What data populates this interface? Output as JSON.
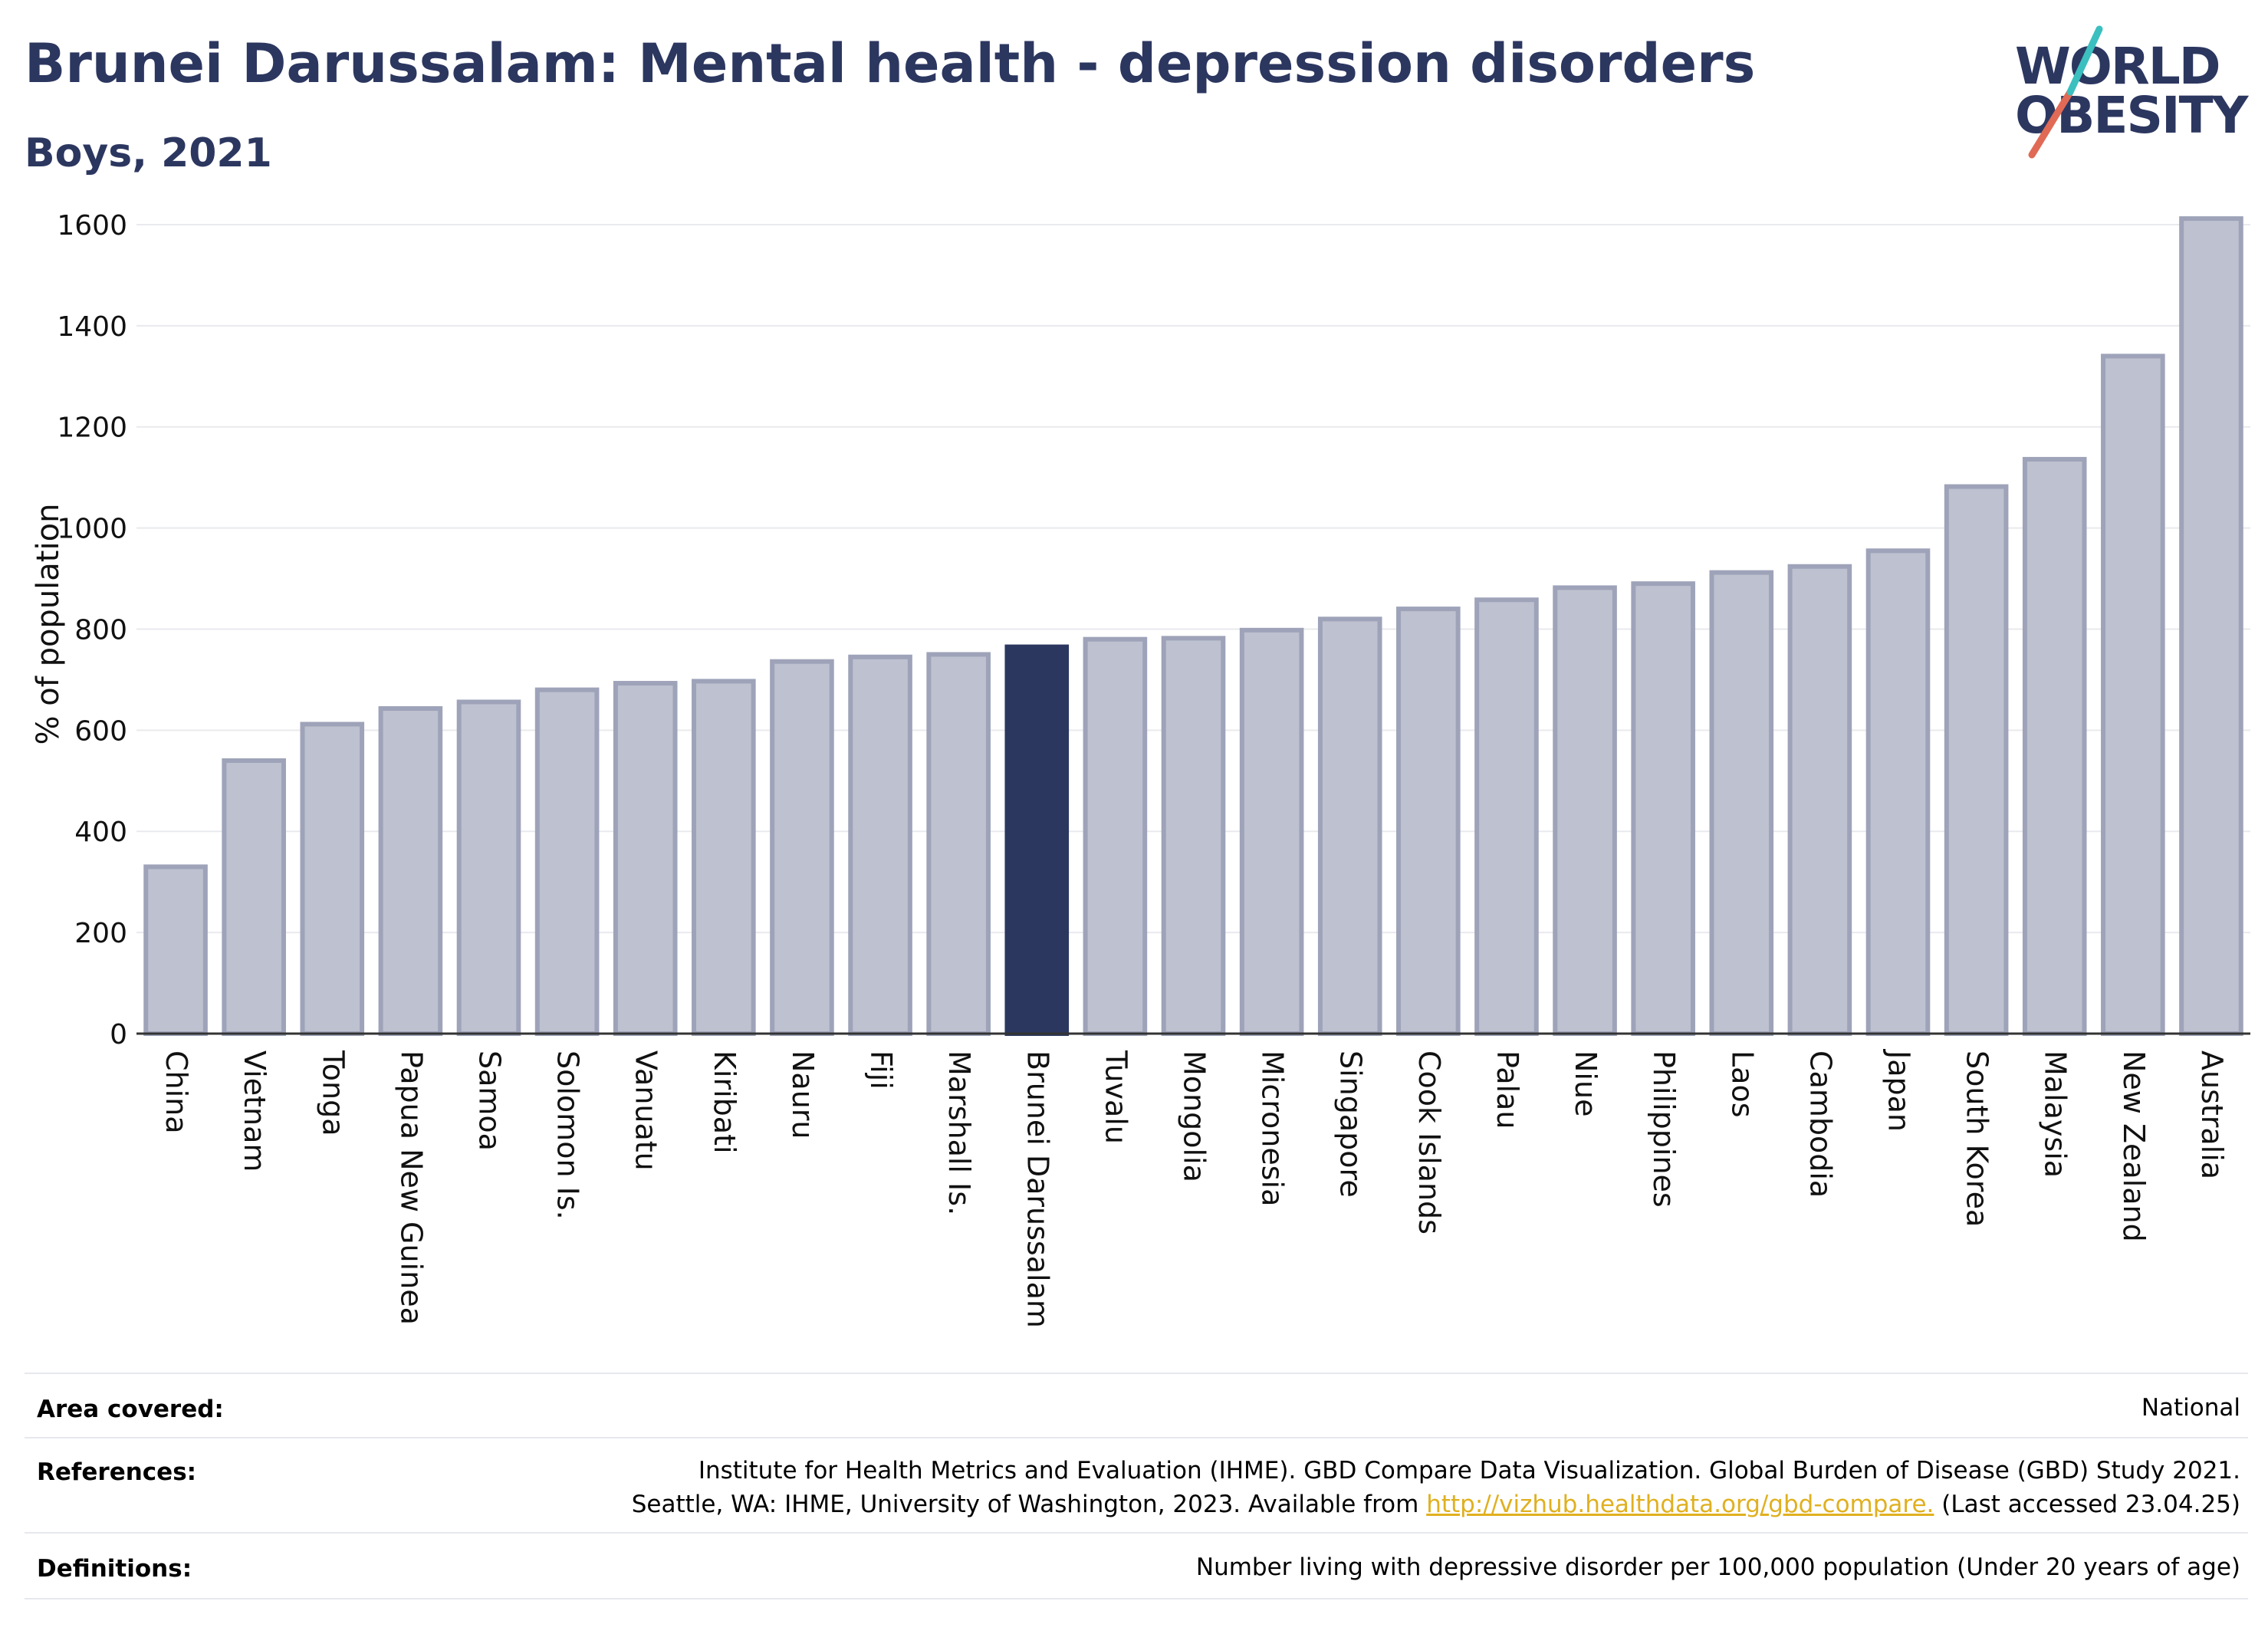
{
  "header": {
    "title": "Brunei Darussalam: Mental health - depression disorders",
    "subtitle": "Boys, 2021"
  },
  "logo": {
    "line1": "WORLD",
    "line2": "OBESITY",
    "colors": [
      "#2c3760",
      "#e06a55",
      "#3cbfbf"
    ]
  },
  "colors": {
    "bar": "#bec1cf",
    "bar_border": "#9ea3b9",
    "highlight": "#2c3760",
    "grid": "#e9eaee",
    "axis": "#333333"
  },
  "chart_data": {
    "type": "bar",
    "ylabel": "% of population",
    "ylim": [
      0,
      1650
    ],
    "yticks": [
      0,
      200,
      400,
      600,
      800,
      1000,
      1200,
      1400,
      1600
    ],
    "grid": true,
    "highlight": "Brunei Darussalam",
    "categories": [
      "China",
      "Vietnam",
      "Tonga",
      "Papua New Guinea",
      "Samoa",
      "Solomon Is.",
      "Vanuatu",
      "Kiribati",
      "Nauru",
      "Fiji",
      "Marshall Is.",
      "Brunei Darussalam",
      "Tuvalu",
      "Mongolia",
      "Micronesia",
      "Singapore",
      "Cook Islands",
      "Palau",
      "Niue",
      "Philippines",
      "Laos",
      "Cambodia",
      "Japan",
      "South Korea",
      "Malaysia",
      "New Zealand",
      "Australia"
    ],
    "values": [
      330,
      540,
      612,
      643,
      656,
      680,
      693,
      697,
      736,
      745,
      750,
      765,
      780,
      782,
      798,
      820,
      840,
      858,
      882,
      890,
      912,
      924,
      955,
      1082,
      1136,
      1340,
      1612
    ]
  },
  "info": {
    "area_label": "Area covered:",
    "area_value": "National",
    "references_label": "References:",
    "references_line1": "Institute for Health Metrics and Evaluation (IHME). GBD Compare Data Visualization. Global Burden of Disease (GBD) Study 2021.",
    "references_line2_pre": "Seattle, WA: IHME, University of Washington, 2023. Available from ",
    "references_link": "http://vizhub.healthdata.org/gbd-compare.",
    "references_line2_post": " (Last accessed 23.04.25)",
    "definitions_label": "Definitions:",
    "definitions_value": "Number living with depressive disorder per 100,000 population (Under 20 years of age)"
  }
}
